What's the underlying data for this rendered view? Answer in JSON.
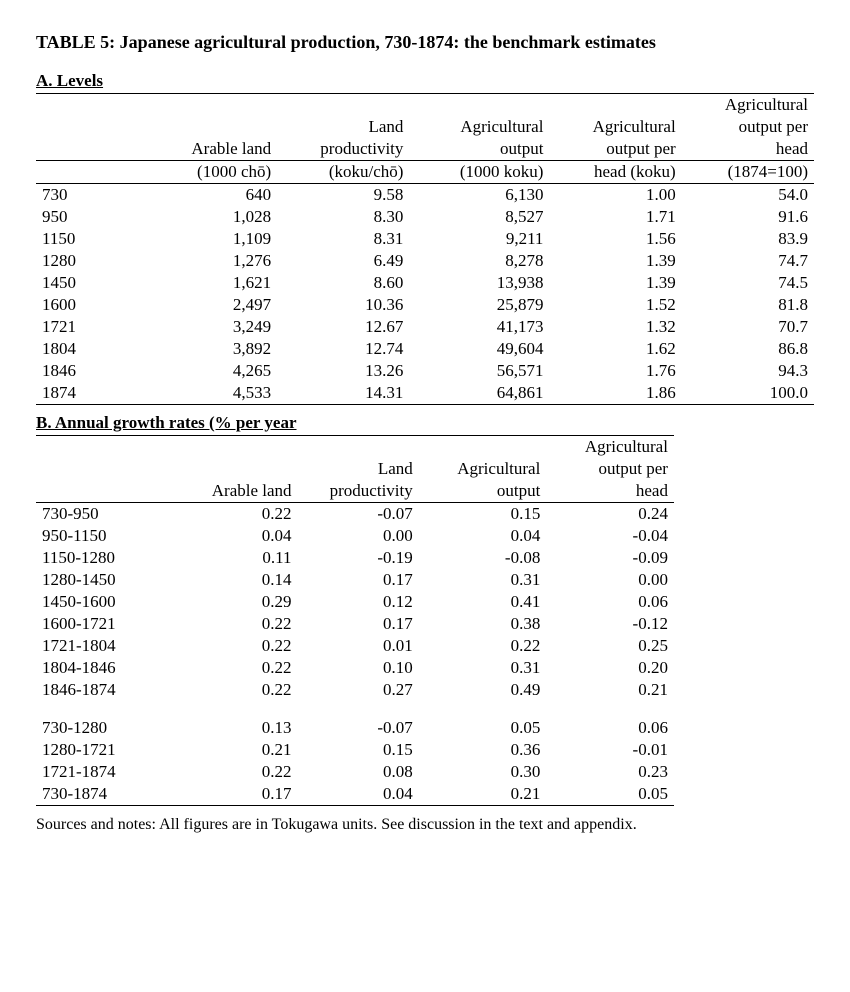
{
  "title": "TABLE 5: Japanese agricultural production, 730-1874: the benchmark estimates",
  "sectionA": {
    "label": "A. Levels",
    "headers": {
      "c1_l1": "",
      "c1_l2": "Arable land",
      "c1_l3": "(1000 chō)",
      "c2_l1": "Land",
      "c2_l2": "productivity",
      "c2_l3": "(koku/chō)",
      "c3_l1": "Agricultural",
      "c3_l2": "output",
      "c3_l3": "(1000 koku)",
      "c4_l1": "Agricultural",
      "c4_l2": "output per",
      "c4_l3": "head (koku)",
      "c5_l1": "Agricultural",
      "c5_l2": "output per",
      "c5_l3": "head",
      "c5_l4": "(1874=100)"
    },
    "rows": [
      {
        "y": "730",
        "a": "640",
        "b": "9.58",
        "c": "6,130",
        "d": "1.00",
        "e": "54.0"
      },
      {
        "y": "950",
        "a": "1,028",
        "b": "8.30",
        "c": "8,527",
        "d": "1.71",
        "e": "91.6"
      },
      {
        "y": "1150",
        "a": "1,109",
        "b": "8.31",
        "c": "9,211",
        "d": "1.56",
        "e": "83.9"
      },
      {
        "y": "1280",
        "a": "1,276",
        "b": "6.49",
        "c": "8,278",
        "d": "1.39",
        "e": "74.7"
      },
      {
        "y": "1450",
        "a": "1,621",
        "b": "8.60",
        "c": "13,938",
        "d": "1.39",
        "e": "74.5"
      },
      {
        "y": "1600",
        "a": "2,497",
        "b": "10.36",
        "c": "25,879",
        "d": "1.52",
        "e": "81.8"
      },
      {
        "y": "1721",
        "a": "3,249",
        "b": "12.67",
        "c": "41,173",
        "d": "1.32",
        "e": "70.7"
      },
      {
        "y": "1804",
        "a": "3,892",
        "b": "12.74",
        "c": "49,604",
        "d": "1.62",
        "e": "86.8"
      },
      {
        "y": "1846",
        "a": "4,265",
        "b": "13.26",
        "c": "56,571",
        "d": "1.76",
        "e": "94.3"
      },
      {
        "y": "1874",
        "a": "4,533",
        "b": "14.31",
        "c": "64,861",
        "d": "1.86",
        "e": "100.0"
      }
    ]
  },
  "sectionB": {
    "label": "B. Annual growth rates (% per year",
    "headers": {
      "c1_l1": "",
      "c1_l2": "Arable land",
      "c2_l1": "Land",
      "c2_l2": "productivity",
      "c3_l1": "Agricultural",
      "c3_l2": "output",
      "c4_l1": "Agricultural",
      "c4_l2": "output per",
      "c4_l3": "head"
    },
    "group1": [
      {
        "y": "730-950",
        "a": "0.22",
        "b": "-0.07",
        "c": "0.15",
        "d": "0.24"
      },
      {
        "y": "950-1150",
        "a": "0.04",
        "b": "0.00",
        "c": "0.04",
        "d": "-0.04"
      },
      {
        "y": "1150-1280",
        "a": "0.11",
        "b": "-0.19",
        "c": "-0.08",
        "d": "-0.09"
      },
      {
        "y": "1280-1450",
        "a": "0.14",
        "b": "0.17",
        "c": "0.31",
        "d": "0.00"
      },
      {
        "y": "1450-1600",
        "a": "0.29",
        "b": "0.12",
        "c": "0.41",
        "d": "0.06"
      },
      {
        "y": "1600-1721",
        "a": "0.22",
        "b": "0.17",
        "c": "0.38",
        "d": "-0.12"
      },
      {
        "y": "1721-1804",
        "a": "0.22",
        "b": "0.01",
        "c": "0.22",
        "d": "0.25"
      },
      {
        "y": "1804-1846",
        "a": "0.22",
        "b": "0.10",
        "c": "0.31",
        "d": "0.20"
      },
      {
        "y": "1846-1874",
        "a": "0.22",
        "b": "0.27",
        "c": "0.49",
        "d": "0.21"
      }
    ],
    "group2": [
      {
        "y": "730-1280",
        "a": "0.13",
        "b": "-0.07",
        "c": "0.05",
        "d": "0.06"
      },
      {
        "y": "1280-1721",
        "a": "0.21",
        "b": "0.15",
        "c": "0.36",
        "d": "-0.01"
      },
      {
        "y": "1721-1874",
        "a": "0.22",
        "b": "0.08",
        "c": "0.30",
        "d": "0.23"
      },
      {
        "y": "730-1874",
        "a": "0.17",
        "b": "0.04",
        "c": "0.21",
        "d": "0.05"
      }
    ]
  },
  "notes": "Sources and notes: All figures are in Tokugawa units. See discussion in the text and appendix."
}
